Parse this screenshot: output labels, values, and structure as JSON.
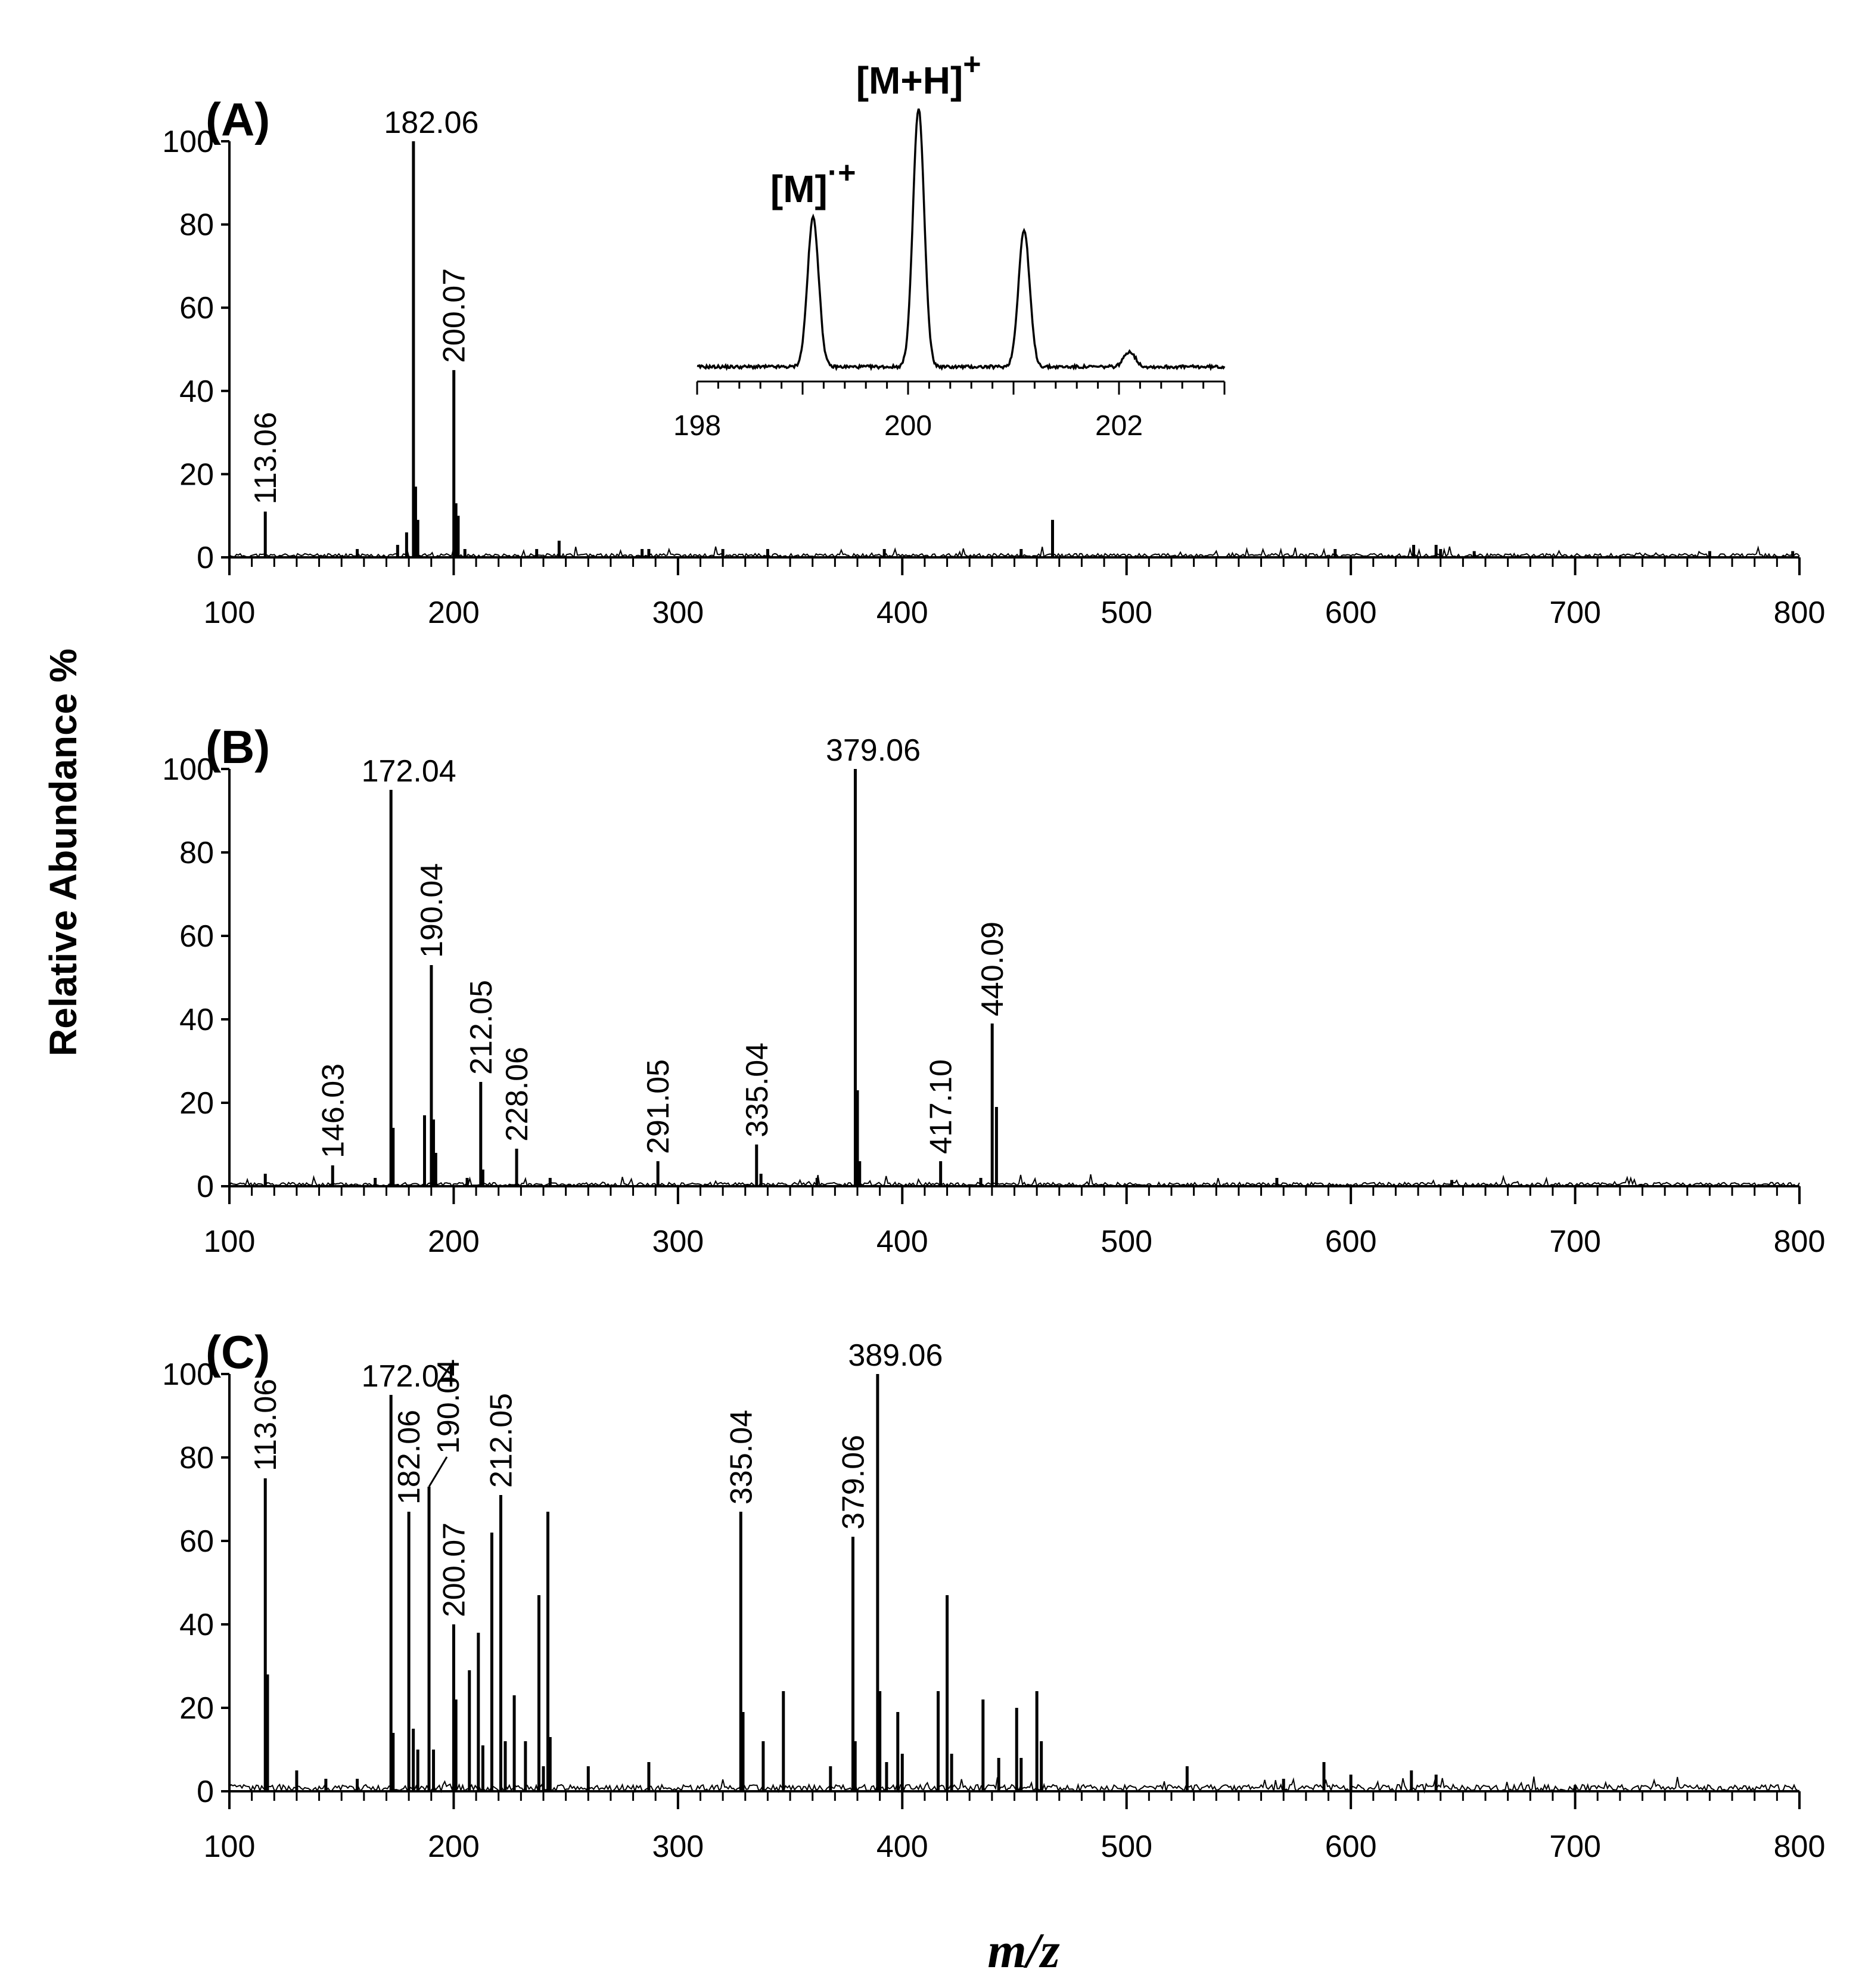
{
  "figure": {
    "ylabel": "Relative Abundance %",
    "xlabel": "m/z"
  },
  "chart_data": [
    {
      "type": "bar",
      "panel_label": "(A)",
      "xlim": [
        100,
        800
      ],
      "ylim": [
        0,
        100
      ],
      "xticks": [
        "100",
        "200",
        "300",
        "400",
        "500",
        "600",
        "700",
        "800"
      ],
      "yticks": [
        "0",
        "20",
        "40",
        "60",
        "80",
        "100"
      ],
      "peaks": [
        [
          116,
          11
        ],
        [
          182.06,
          100
        ],
        [
          183,
          17
        ],
        [
          184,
          9
        ],
        [
          179,
          6
        ],
        [
          175,
          3
        ],
        [
          157,
          2
        ],
        [
          200.07,
          45
        ],
        [
          201,
          13
        ],
        [
          202,
          10
        ],
        [
          205,
          2
        ],
        [
          237,
          2
        ],
        [
          247,
          4
        ],
        [
          284,
          2
        ],
        [
          287,
          2
        ],
        [
          320,
          2
        ],
        [
          340,
          2
        ],
        [
          392,
          2
        ],
        [
          467,
          9
        ],
        [
          453,
          2
        ],
        [
          593,
          2
        ],
        [
          628,
          3
        ],
        [
          638,
          3
        ],
        [
          640,
          2
        ],
        [
          655,
          1.5
        ],
        [
          760,
          1.5
        ],
        [
          797,
          1.5
        ]
      ],
      "labels": [
        {
          "text": "113.06",
          "mz": 116,
          "y": 11,
          "rotated": true
        },
        {
          "text": "182.06",
          "mz": 182.06,
          "y": 100,
          "rotated": false
        },
        {
          "text": "200.07",
          "mz": 200.07,
          "y": 45,
          "rotated": true
        }
      ],
      "inset": {
        "type": "line",
        "xlim": [
          198,
          203
        ],
        "xticks": [
          "198",
          "200",
          "202"
        ],
        "peaks": [
          {
            "mz": 199.1,
            "height": 0.58
          },
          {
            "mz": 200.1,
            "height": 1.0
          },
          {
            "mz": 201.1,
            "height": 0.53
          },
          {
            "mz": 202.1,
            "height": 0.06
          }
        ],
        "annotations": [
          {
            "base": "[M]",
            "sup": "·+",
            "mz": 199.1
          },
          {
            "base": "[M+H]",
            "sup": "+",
            "mz": 200.1
          }
        ]
      }
    },
    {
      "type": "bar",
      "panel_label": "(B)",
      "xlim": [
        100,
        800
      ],
      "ylim": [
        0,
        100
      ],
      "xticks": [
        "100",
        "200",
        "300",
        "400",
        "500",
        "600",
        "700",
        "800"
      ],
      "yticks": [
        "0",
        "20",
        "40",
        "60",
        "80",
        "100"
      ],
      "peaks": [
        [
          116,
          3
        ],
        [
          146.03,
          5
        ],
        [
          165,
          2
        ],
        [
          172.04,
          95
        ],
        [
          173,
          14
        ],
        [
          187,
          17
        ],
        [
          190.04,
          53
        ],
        [
          191,
          16
        ],
        [
          192,
          8
        ],
        [
          206,
          2
        ],
        [
          212.05,
          25
        ],
        [
          213,
          4
        ],
        [
          228.06,
          9
        ],
        [
          243,
          2
        ],
        [
          291.05,
          6
        ],
        [
          335.04,
          10
        ],
        [
          337,
          3
        ],
        [
          362,
          2
        ],
        [
          379.06,
          100
        ],
        [
          380,
          23
        ],
        [
          381,
          6
        ],
        [
          417.1,
          6
        ],
        [
          435,
          2
        ],
        [
          440.09,
          39
        ],
        [
          442,
          19
        ],
        [
          567,
          2
        ],
        [
          645,
          1.5
        ]
      ],
      "labels": [
        {
          "text": "146.03",
          "mz": 146.03,
          "y": 5,
          "rotated": true
        },
        {
          "text": "172.04",
          "mz": 172.04,
          "y": 95,
          "rotated": false
        },
        {
          "text": "190.04",
          "mz": 190.04,
          "y": 53,
          "rotated": true
        },
        {
          "text": "212.05",
          "mz": 212.05,
          "y": 25,
          "rotated": true
        },
        {
          "text": "228.06",
          "mz": 228.06,
          "y": 9,
          "rotated": true
        },
        {
          "text": "291.05",
          "mz": 291.05,
          "y": 6,
          "rotated": true
        },
        {
          "text": "335.04",
          "mz": 335.04,
          "y": 10,
          "rotated": true
        },
        {
          "text": "379.06",
          "mz": 379.06,
          "y": 100,
          "rotated": false
        },
        {
          "text": "417.10",
          "mz": 417.1,
          "y": 6,
          "rotated": true
        },
        {
          "text": "440.09",
          "mz": 440.09,
          "y": 39,
          "rotated": true
        }
      ]
    },
    {
      "type": "bar",
      "panel_label": "(C)",
      "xlim": [
        100,
        800
      ],
      "ylim": [
        0,
        100
      ],
      "xticks": [
        "100",
        "200",
        "300",
        "400",
        "500",
        "600",
        "700",
        "800"
      ],
      "yticks": [
        "0",
        "20",
        "40",
        "60",
        "80",
        "100"
      ],
      "peaks": [
        [
          116,
          75
        ],
        [
          117,
          28
        ],
        [
          130,
          5
        ],
        [
          143,
          3
        ],
        [
          157,
          3
        ],
        [
          172.04,
          95
        ],
        [
          173,
          14
        ],
        [
          180,
          67
        ],
        [
          182,
          15
        ],
        [
          184,
          10
        ],
        [
          189,
          73
        ],
        [
          191,
          10
        ],
        [
          200,
          40
        ],
        [
          201,
          22
        ],
        [
          207,
          29
        ],
        [
          211,
          38
        ],
        [
          213,
          11
        ],
        [
          217,
          62
        ],
        [
          221,
          71
        ],
        [
          223,
          12
        ],
        [
          227,
          23
        ],
        [
          232,
          12
        ],
        [
          238,
          47
        ],
        [
          240,
          6
        ],
        [
          242,
          67
        ],
        [
          243,
          13
        ],
        [
          260,
          6
        ],
        [
          287,
          7
        ],
        [
          328,
          67
        ],
        [
          329,
          19
        ],
        [
          338,
          12
        ],
        [
          347,
          24
        ],
        [
          368,
          6
        ],
        [
          378,
          61
        ],
        [
          379,
          12
        ],
        [
          389,
          100
        ],
        [
          390,
          24
        ],
        [
          393,
          7
        ],
        [
          398,
          19
        ],
        [
          400,
          9
        ],
        [
          416,
          24
        ],
        [
          420,
          47
        ],
        [
          422,
          9
        ],
        [
          436,
          22
        ],
        [
          443,
          8
        ],
        [
          451,
          20
        ],
        [
          453,
          8
        ],
        [
          460,
          24
        ],
        [
          462,
          12
        ],
        [
          527,
          6
        ],
        [
          570,
          3
        ],
        [
          588,
          7
        ],
        [
          600,
          4
        ],
        [
          627,
          5
        ],
        [
          638,
          4
        ],
        [
          700,
          1.5
        ]
      ],
      "labels": [
        {
          "text": "113.06",
          "mz": 116,
          "y": 75,
          "rotated": true
        },
        {
          "text": "172.04",
          "mz": 172.04,
          "y": 95,
          "rotated": false
        },
        {
          "text": "182.06",
          "mz": 180,
          "y": 67,
          "rotated": true
        },
        {
          "text": "190.04",
          "mz": 189,
          "y": 73,
          "rotated": true,
          "leader": true
        },
        {
          "text": "200.07",
          "mz": 200,
          "y": 40,
          "rotated": true
        },
        {
          "text": "212.05",
          "mz": 221,
          "y": 71,
          "rotated": true
        },
        {
          "text": "335.04",
          "mz": 328,
          "y": 67,
          "rotated": true
        },
        {
          "text": "379.06",
          "mz": 378,
          "y": 61,
          "rotated": true
        },
        {
          "text": "389.06",
          "mz": 389,
          "y": 100,
          "rotated": false
        }
      ]
    }
  ]
}
